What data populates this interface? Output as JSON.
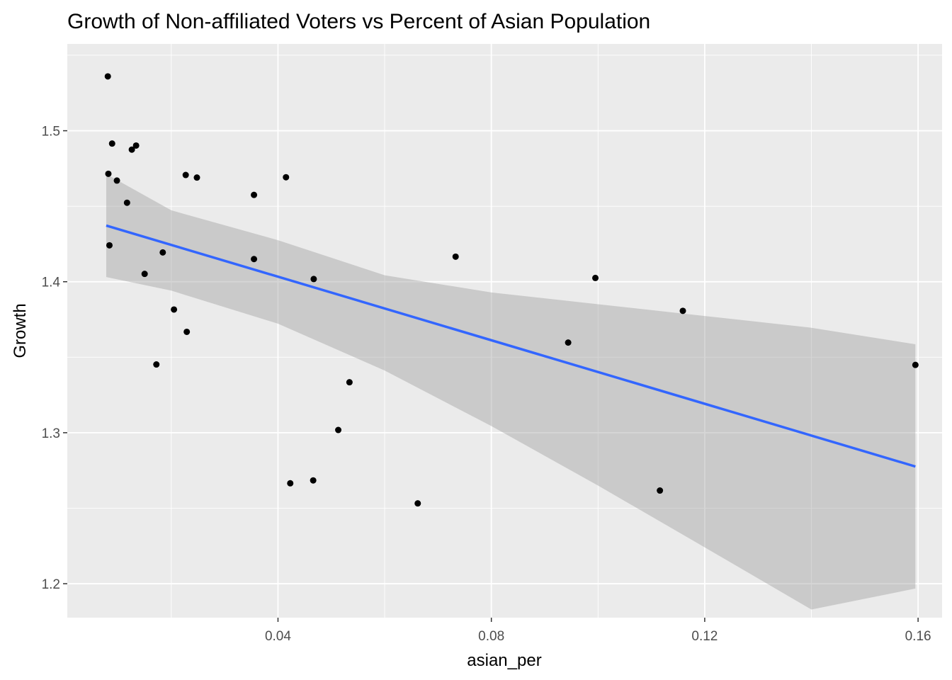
{
  "chart_data": {
    "type": "scatter",
    "title": "Growth of Non-affiliated Voters vs Percent of Asian Population",
    "xlabel": "asian_per",
    "ylabel": "Growth",
    "xlim": [
      0.0005,
      0.1645
    ],
    "ylim": [
      1.1775,
      1.5575
    ],
    "x_ticks": [
      0.04,
      0.08,
      0.12,
      0.16
    ],
    "x_tick_labels": [
      "0.04",
      "0.08",
      "0.12",
      "0.16"
    ],
    "y_ticks": [
      1.2,
      1.3,
      1.4,
      1.5
    ],
    "y_tick_labels": [
      "1.2",
      "1.3",
      "1.4",
      "1.5"
    ],
    "grid": true,
    "points": [
      {
        "x": 0.0081,
        "y": 1.536
      },
      {
        "x": 0.0089,
        "y": 1.4915
      },
      {
        "x": 0.0134,
        "y": 1.4902
      },
      {
        "x": 0.0126,
        "y": 1.4875
      },
      {
        "x": 0.0082,
        "y": 1.4715
      },
      {
        "x": 0.0098,
        "y": 1.467
      },
      {
        "x": 0.0117,
        "y": 1.4523
      },
      {
        "x": 0.0084,
        "y": 1.4241
      },
      {
        "x": 0.0184,
        "y": 1.4194
      },
      {
        "x": 0.015,
        "y": 1.4052
      },
      {
        "x": 0.0227,
        "y": 1.4707
      },
      {
        "x": 0.0248,
        "y": 1.469
      },
      {
        "x": 0.0205,
        "y": 1.3816
      },
      {
        "x": 0.0229,
        "y": 1.3668
      },
      {
        "x": 0.0172,
        "y": 1.3452
      },
      {
        "x": 0.0355,
        "y": 1.4575
      },
      {
        "x": 0.0355,
        "y": 1.415
      },
      {
        "x": 0.0415,
        "y": 1.4692
      },
      {
        "x": 0.0467,
        "y": 1.4018
      },
      {
        "x": 0.0423,
        "y": 1.2665
      },
      {
        "x": 0.0466,
        "y": 1.2684
      },
      {
        "x": 0.0513,
        "y": 1.3018
      },
      {
        "x": 0.0534,
        "y": 1.3334
      },
      {
        "x": 0.0662,
        "y": 1.2532
      },
      {
        "x": 0.0733,
        "y": 1.4166
      },
      {
        "x": 0.0944,
        "y": 1.3597
      },
      {
        "x": 0.0995,
        "y": 1.4025
      },
      {
        "x": 0.1116,
        "y": 1.2617
      },
      {
        "x": 0.1159,
        "y": 1.3807
      },
      {
        "x": 0.1595,
        "y": 1.3449
      }
    ],
    "fit": {
      "method": "linear",
      "line": {
        "x": [
          0.0078,
          0.1595
        ],
        "y": [
          1.4372,
          1.2776
        ]
      },
      "band": {
        "x": [
          0.0078,
          0.02,
          0.04,
          0.06,
          0.08,
          0.1,
          0.12,
          0.14,
          0.1595
        ],
        "lower": [
          1.4031,
          1.3941,
          1.3722,
          1.3412,
          1.3044,
          1.265,
          1.2241,
          1.1829,
          1.1968
        ],
        "upper": [
          1.4713,
          1.4473,
          1.4275,
          1.4043,
          1.3929,
          1.3851,
          1.3773,
          1.3695,
          1.3586
        ]
      }
    },
    "colors": {
      "panel": "#ebebeb",
      "grid_major": "#ffffff",
      "points": "#000000",
      "fit_line": "#3366ff",
      "band": "#999999"
    }
  }
}
